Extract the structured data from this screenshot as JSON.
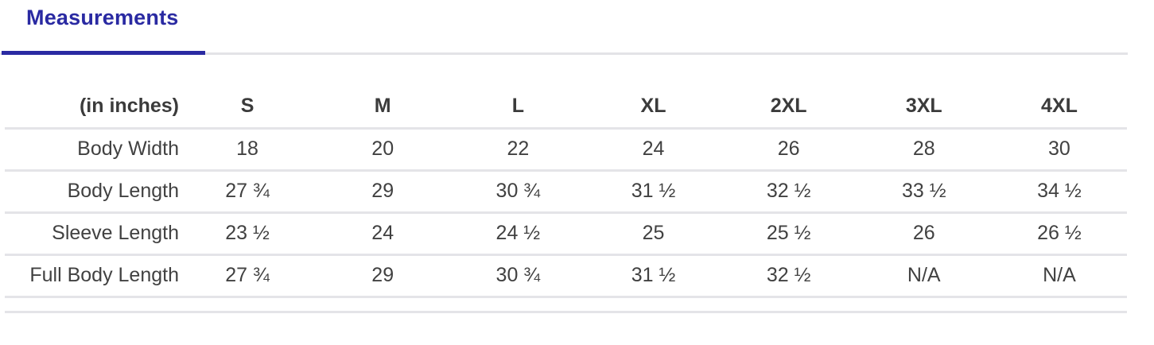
{
  "tabs": {
    "measurements": {
      "label": "Measurements"
    }
  },
  "colors": {
    "accent": "#2a2aa2",
    "text": "#414141",
    "border": "#e4e4e8"
  },
  "table": {
    "unit_header": "(in inches)",
    "columns": [
      "S",
      "M",
      "L",
      "XL",
      "2XL",
      "3XL",
      "4XL"
    ],
    "rows": [
      {
        "label": "Body Width",
        "values": [
          "18",
          "20",
          "22",
          "24",
          "26",
          "28",
          "30"
        ]
      },
      {
        "label": "Body Length",
        "values": [
          "27 ¾",
          "29",
          "30 ¾",
          "31 ½",
          "32 ½",
          "33 ½",
          "34 ½"
        ]
      },
      {
        "label": "Sleeve Length",
        "values": [
          "23 ½",
          "24",
          "24 ½",
          "25",
          "25 ½",
          "26",
          "26 ½"
        ]
      },
      {
        "label": "Full Body Length",
        "values": [
          "27 ¾",
          "29",
          "30 ¾",
          "31 ½",
          "32 ½",
          "N/A",
          "N/A"
        ]
      }
    ]
  }
}
